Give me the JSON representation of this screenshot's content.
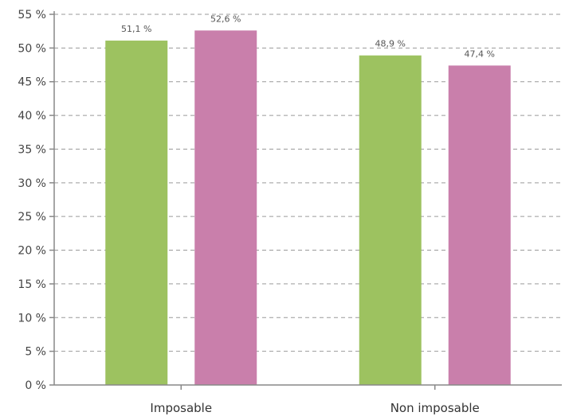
{
  "chart_data": {
    "type": "bar",
    "categories": [
      "Imposable",
      "Non imposable"
    ],
    "series": [
      {
        "values": [
          51.1,
          48.9
        ],
        "labels": [
          "51,1 %",
          "48,9 %"
        ],
        "color": "#9dc260"
      },
      {
        "values": [
          52.6,
          47.4
        ],
        "labels": [
          "52,6 %",
          "47,4 %"
        ],
        "color": "#c97fab"
      }
    ],
    "ylim": [
      0,
      55
    ],
    "yticks": [
      0,
      5,
      10,
      15,
      20,
      25,
      30,
      35,
      40,
      45,
      50,
      55
    ],
    "ytick_labels": [
      "0 %",
      "5 %",
      "10 %",
      "15 %",
      "20 %",
      "25 %",
      "30 %",
      "35 %",
      "40 %",
      "45 %",
      "50 %",
      "55 %"
    ],
    "grid": true,
    "legend": "none"
  }
}
